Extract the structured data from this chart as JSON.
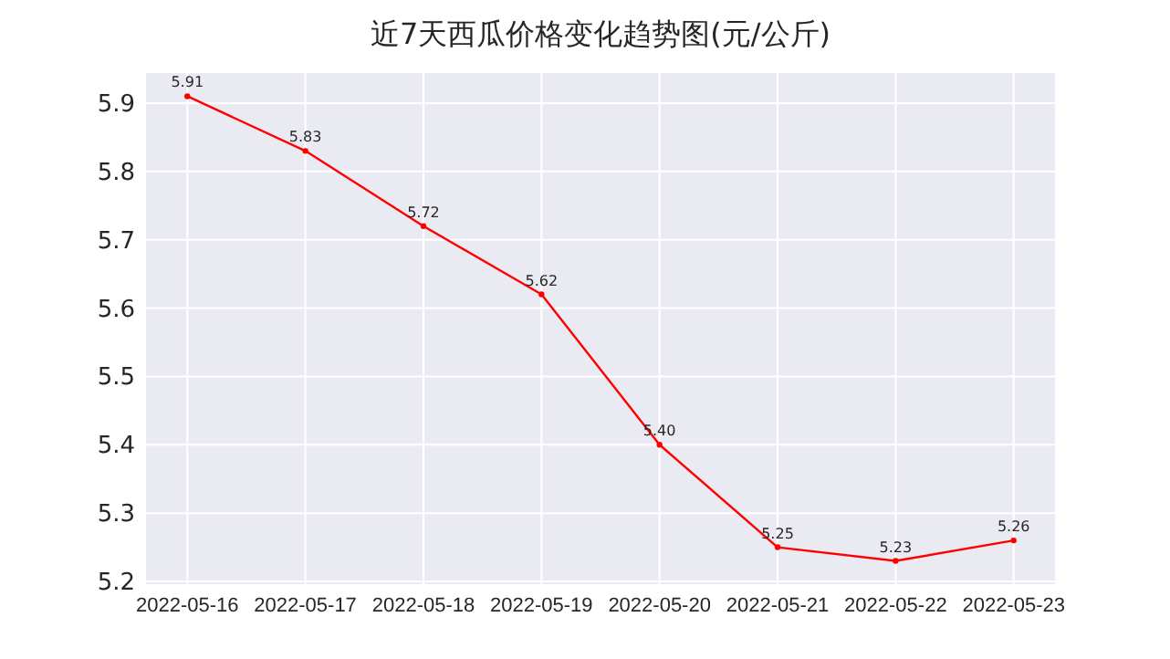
{
  "chart_data": {
    "type": "line",
    "title": "近7天西瓜价格变化趋势图(元/公斤)",
    "x": [
      "2022-05-16",
      "2022-05-17",
      "2022-05-18",
      "2022-05-19",
      "2022-05-20",
      "2022-05-21",
      "2022-05-22",
      "2022-05-23"
    ],
    "series": [
      {
        "color": "#ff0000",
        "values": [
          5.91,
          5.83,
          5.72,
          5.62,
          5.4,
          5.25,
          5.23,
          5.26
        ],
        "value_labels": [
          "5.91",
          "5.83",
          "5.72",
          "5.62",
          "5.40",
          "5.25",
          "5.23",
          "5.26"
        ]
      }
    ],
    "xlim": [
      "2022-05-15T15:36",
      "2022-05-23T08:24"
    ],
    "xticks": [
      "2022-05-16",
      "2022-05-17",
      "2022-05-18",
      "2022-05-19",
      "2022-05-20",
      "2022-05-21",
      "2022-05-22",
      "2022-05-23"
    ],
    "ylim": [
      5.196,
      5.944
    ],
    "yticks": [
      5.2,
      5.3,
      5.4,
      5.5,
      5.6,
      5.7,
      5.8,
      5.9
    ],
    "grid": true,
    "marker": "circle",
    "line_style": "solid"
  }
}
